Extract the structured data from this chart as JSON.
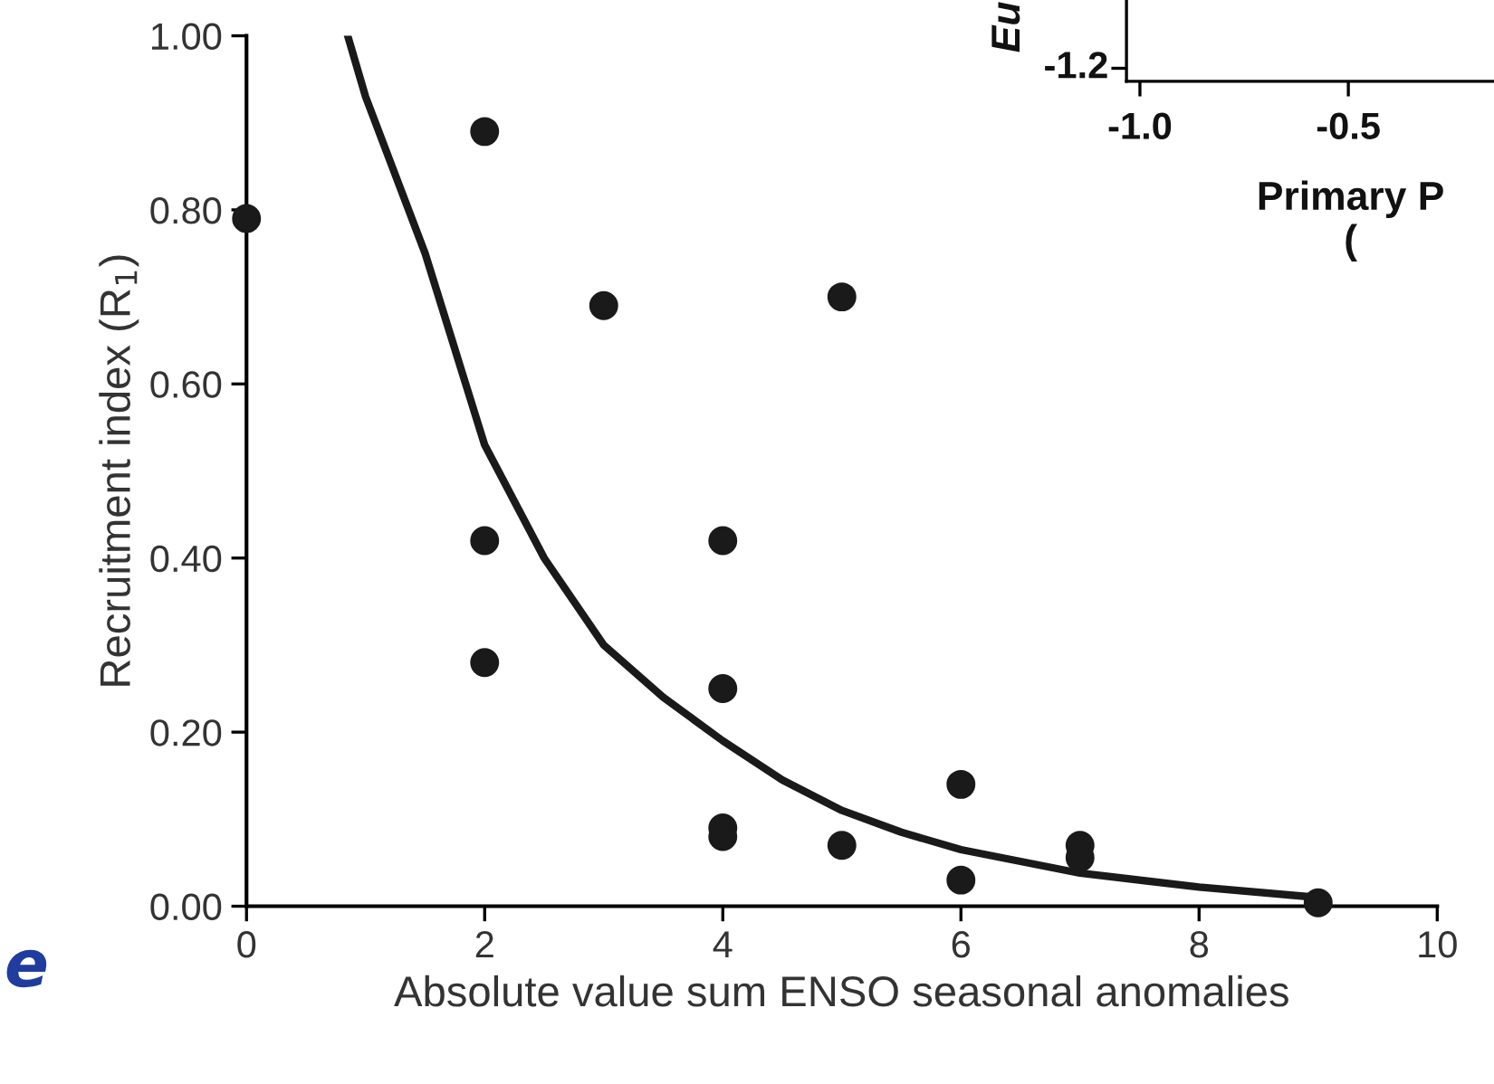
{
  "chart_data": [
    {
      "type": "scatter",
      "xlabel": "Absolute value sum ENSO seasonal anomalies",
      "ylabel": "Recruitment index (R$_{1}$)",
      "series": [
        {
          "marker": "circle",
          "color": "#1a1a1a",
          "x": [
            0,
            2,
            2,
            2,
            3,
            4,
            4,
            4,
            4,
            5,
            5,
            6,
            6,
            7,
            7,
            9
          ],
          "values": [
            0.79,
            0.89,
            0.42,
            0.28,
            0.69,
            0.42,
            0.25,
            0.09,
            0.08,
            0.7,
            0.07,
            0.14,
            0.03,
            0.07,
            0.056,
            0.004
          ]
        },
        {
          "type": "line",
          "marker": "none",
          "color": "#1a1a1a",
          "x": [
            0.85,
            1,
            1.5,
            2,
            2.5,
            3,
            3.5,
            4,
            4.5,
            5,
            5.5,
            6,
            7,
            8,
            9
          ],
          "values": [
            1.0,
            0.93,
            0.75,
            0.53,
            0.4,
            0.3,
            0.24,
            0.19,
            0.145,
            0.11,
            0.085,
            0.065,
            0.038,
            0.022,
            0.01
          ]
        }
      ],
      "xlim": [
        0,
        10
      ],
      "xticks": [
        0,
        2,
        4,
        6,
        8,
        10
      ],
      "ylim": [
        0,
        1.0
      ],
      "yticks": [
        {
          "value": 0,
          "label": "0.00"
        },
        {
          "value": 0.2,
          "label": "0.20"
        },
        {
          "value": 0.4,
          "label": "0.40"
        },
        {
          "value": 0.6,
          "label": "0.60"
        },
        {
          "value": 0.8,
          "label": "0.80"
        },
        {
          "value": 1.0,
          "label": "1.00"
        }
      ],
      "annotations": [
        "e"
      ]
    },
    {
      "type": "other",
      "xlabel": "Primary P\n(",
      "ylabel": "Eu",
      "annotations": [
        "-1.2",
        "-1.0",
        "-0.5"
      ]
    }
  ]
}
